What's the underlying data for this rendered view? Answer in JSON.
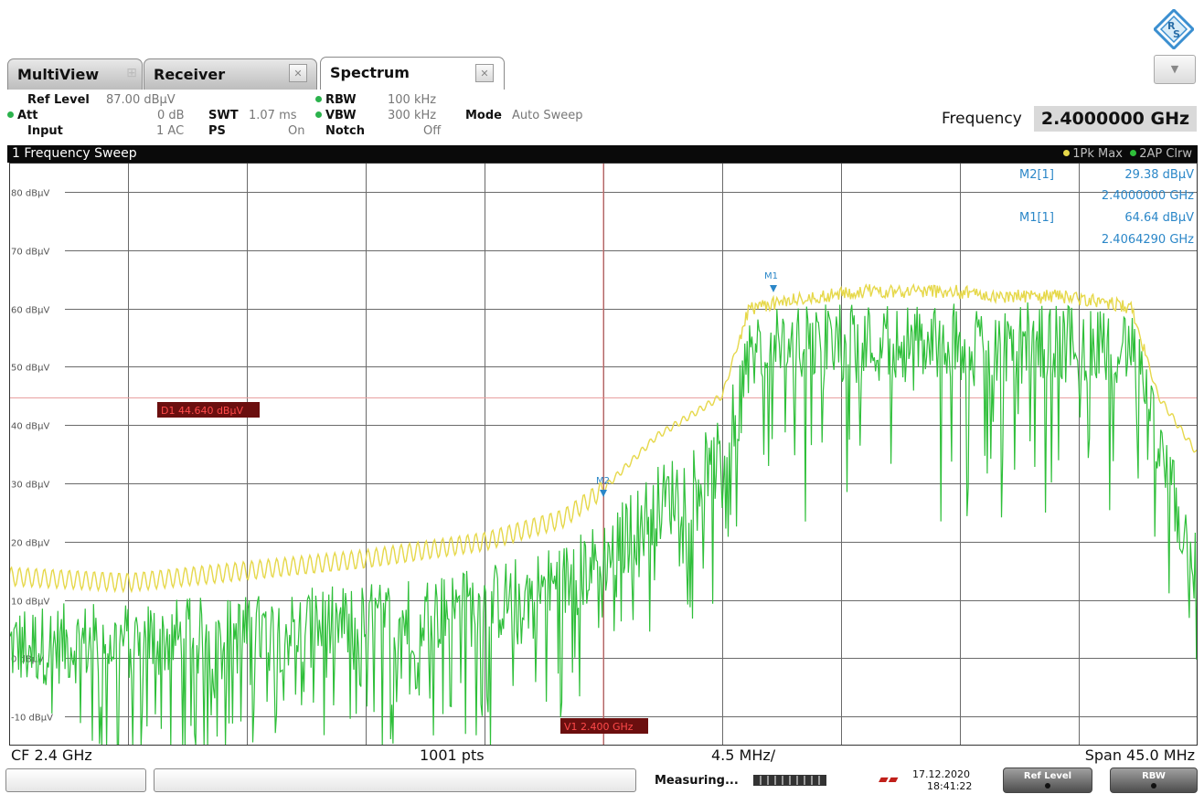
{
  "tabs": [
    {
      "label": "MultiView"
    },
    {
      "label": "Receiver"
    },
    {
      "label": "Spectrum"
    }
  ],
  "settings": {
    "ref_level_label": "Ref Level",
    "ref_level_value": "87.00 dBµV",
    "att_label": "Att",
    "att_value": "0 dB",
    "swt_label": "SWT",
    "swt_value": "1.07 ms",
    "input_label": "Input",
    "input_value": "1 AC",
    "ps_label": "PS",
    "ps_value": "On",
    "rbw_label": "RBW",
    "rbw_value": "100 kHz",
    "vbw_label": "VBW",
    "vbw_value": "300 kHz",
    "notch_label": "Notch",
    "notch_value": "Off",
    "mode_label": "Mode",
    "mode_value": "Auto Sweep",
    "frequency_label": "Frequency",
    "frequency_value": "2.4000000 GHz"
  },
  "plot": {
    "title": "1 Frequency Sweep",
    "trace1_label": "1Pk Max",
    "trace2_label": "2AP Clrw",
    "y_tick_labels": [
      "80 dBµV",
      "70 dBµV",
      "60 dBµV",
      "50 dBµV",
      "40 dBµV",
      "30 dBµV",
      "20 dBµV",
      "10 dBµV",
      "0 dBµV",
      "-10 dBµV"
    ],
    "display_line_label": "D1 44.640 dBµV",
    "vertical_line_label": "V1 2.400 GHz",
    "markers": [
      {
        "name": "M2[1]",
        "level": "29.38 dBµV",
        "freq": "2.4000000 GHz"
      },
      {
        "name": "M1[1]",
        "level": "64.64 dBµV",
        "freq": "2.4064290 GHz"
      }
    ],
    "marker_tags": [
      "M1",
      "M2"
    ]
  },
  "footer": {
    "cf": "CF 2.4 GHz",
    "points": "1001 pts",
    "per_div": "4.5 MHz/",
    "span": "Span 45.0 MHz"
  },
  "status": {
    "measuring": "Measuring...",
    "date": "17.12.2020",
    "time": "18:41:22",
    "ref_level_button": "Ref Level",
    "rbw_button": "RBW"
  },
  "colors": {
    "trace_max": "#e6d84a",
    "trace_clrw": "#2fbf3a",
    "grid": "#6a6a6a",
    "marker_text": "#2b87c8",
    "display_line": "#e8a0a0",
    "red_label_bg": "#6b0f0f"
  },
  "chart_data": {
    "type": "line",
    "xlabel": "",
    "ylabel": "",
    "x_range_ghz": [
      2.3775,
      2.4225
    ],
    "ylim": [
      -15,
      85
    ],
    "grid": true,
    "display_line_dbuv": 44.64,
    "vertical_line_ghz": 2.4,
    "series": [
      {
        "name": "1Pk Max",
        "x": [
          2.3775,
          2.382,
          2.3865,
          2.391,
          2.3955,
          2.3985,
          2.4,
          2.402,
          2.4045,
          2.4055,
          2.408,
          2.41,
          2.413,
          2.415,
          2.4175,
          2.419,
          2.42,
          2.421,
          2.4225
        ],
        "y": [
          14,
          13,
          15,
          17,
          20,
          24,
          29,
          38,
          45,
          60,
          62,
          63,
          63,
          62,
          62,
          61,
          60,
          45,
          35
        ]
      },
      {
        "name": "2AP Clrw",
        "x": [
          2.3775,
          2.382,
          2.3865,
          2.391,
          2.3955,
          2.3985,
          2.4,
          2.402,
          2.4045,
          2.4055,
          2.408,
          2.41,
          2.413,
          2.415,
          2.4175,
          2.419,
          2.42,
          2.421,
          2.4225
        ],
        "y": [
          2,
          3,
          4,
          6,
          9,
          13,
          17,
          26,
          34,
          50,
          52,
          52,
          52,
          52,
          52,
          52,
          52,
          36,
          14
        ]
      }
    ]
  }
}
